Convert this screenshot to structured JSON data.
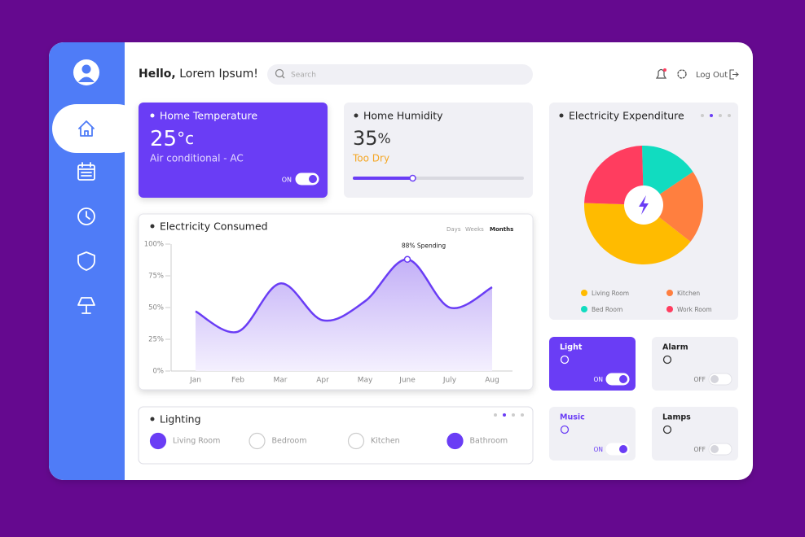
{
  "header": {
    "greeting": "Hello,",
    "name": "Lorem Ipsum!",
    "search_placeholder": "Search",
    "logout": "Log Out"
  },
  "temperature": {
    "title": "Home Temperature",
    "value": 25,
    "unit": "°c",
    "subtitle": "Air conditional - AC",
    "toggle": {
      "label": "ON",
      "on": true
    }
  },
  "humidity": {
    "title": "Home Humidity",
    "value": 35,
    "unit": "%",
    "status": "Too Dry"
  },
  "electricity_consumed": {
    "type": "line",
    "title": "Electricity Consumed",
    "tabs": [
      "Days",
      "Weeks",
      "Months"
    ],
    "categories": [
      "Jan",
      "Feb",
      "Mar",
      "Apr",
      "May",
      "June",
      "July",
      "Aug"
    ],
    "values": [
      47,
      31,
      69,
      40,
      55,
      88,
      50,
      66
    ],
    "color": "#6a3df5",
    "ylim": [
      0,
      100
    ],
    "yticks": [
      {
        "value": 0,
        "label": "0%"
      },
      {
        "value": 25,
        "label": "25%"
      },
      {
        "value": 50,
        "label": "50%"
      },
      {
        "value": 75,
        "label": "75%"
      },
      {
        "value": 100,
        "label": "100%"
      }
    ],
    "annotation": "88% Spending"
  },
  "electricity_expenditure": {
    "type": "pie",
    "title": "Electricity Expenditure",
    "categories": [
      "Living Room",
      "Kitchen",
      "Bed Room",
      "Work Room"
    ],
    "values": [
      40,
      20,
      16,
      24
    ],
    "colors": [
      "#ffbb00",
      "#ff7f3f",
      "#11dcc0",
      "#ff3d5f"
    ]
  },
  "lighting": {
    "title": "Lighting",
    "rooms": [
      {
        "name": "Living Room",
        "on": true
      },
      {
        "name": "Bedroom",
        "on": false
      },
      {
        "name": "Kitchen",
        "on": false
      },
      {
        "name": "Bathroom",
        "on": true
      }
    ]
  },
  "devices": [
    {
      "name": "Light",
      "label": "ON",
      "on": true,
      "highlight": true
    },
    {
      "name": "Alarm",
      "label": "OFF",
      "on": false,
      "highlight": false
    },
    {
      "name": "Music",
      "label": "ON",
      "on": true,
      "highlight": false
    },
    {
      "name": "Lamps",
      "label": "OFF",
      "on": false,
      "highlight": false
    }
  ]
}
